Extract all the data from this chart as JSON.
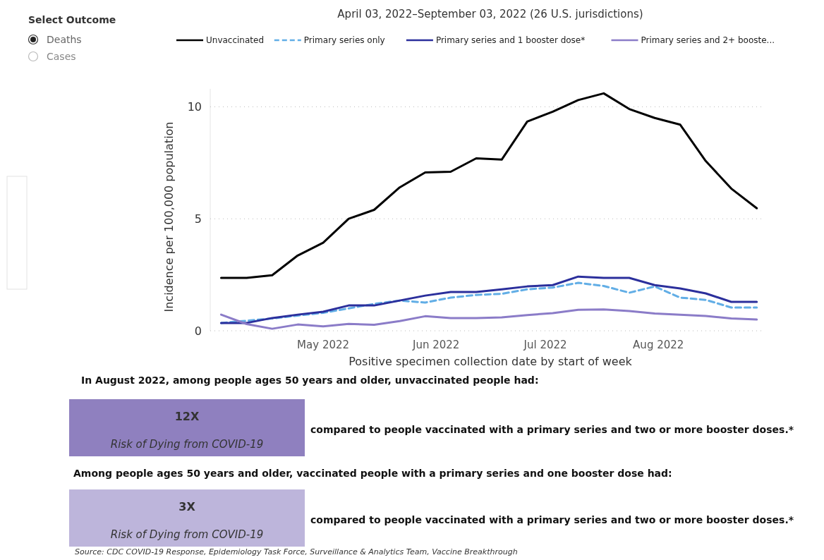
{
  "chart_data": {
    "type": "line",
    "title": "April 03, 2022–September 03, 2022 (26 U.S. jurisdictions)",
    "xlabel": "Positive specimen collection date by start of week",
    "ylabel": "Incidence per 100,000 population",
    "x": [
      "2022-04-03",
      "2022-04-10",
      "2022-04-17",
      "2022-04-24",
      "2022-05-01",
      "2022-05-08",
      "2022-05-15",
      "2022-05-22",
      "2022-05-29",
      "2022-06-05",
      "2022-06-12",
      "2022-06-19",
      "2022-06-26",
      "2022-07-03",
      "2022-07-10",
      "2022-07-17",
      "2022-07-24",
      "2022-07-31",
      "2022-08-07",
      "2022-08-14",
      "2022-08-21",
      "2022-08-28"
    ],
    "xlim": [
      "2022-03-31",
      "2022-08-30"
    ],
    "xticks": [
      {
        "value": "2022-05-01",
        "label": "May 2022"
      },
      {
        "value": "2022-06-01",
        "label": "Jun 2022"
      },
      {
        "value": "2022-07-01",
        "label": "Jul 2022"
      },
      {
        "value": "2022-08-01",
        "label": "Aug 2022"
      }
    ],
    "ylim": [
      0,
      10.8
    ],
    "yticks": [
      0,
      5,
      10
    ],
    "grid": "y",
    "legend": "top",
    "series": [
      {
        "name": "Unvaccinated",
        "color": "#000000",
        "line_style": "solid",
        "values": [
          2.36,
          2.36,
          2.48,
          3.36,
          3.93,
          5.0,
          5.4,
          6.4,
          7.07,
          7.1,
          7.7,
          7.64,
          9.34,
          9.78,
          10.3,
          10.6,
          9.9,
          9.5,
          9.2,
          7.58,
          6.35,
          5.47
        ]
      },
      {
        "name": "Primary series only",
        "color": "#62aee6",
        "line_style": "dashed",
        "values": [
          0.35,
          0.45,
          0.55,
          0.68,
          0.8,
          1.0,
          1.2,
          1.35,
          1.26,
          1.48,
          1.6,
          1.65,
          1.85,
          1.93,
          2.14,
          2.0,
          1.7,
          1.98,
          1.48,
          1.38,
          1.04,
          1.04
        ]
      },
      {
        "name": "Primary series and 1 booster dose*",
        "color": "#2b2f9c",
        "line_style": "solid",
        "values": [
          0.35,
          0.35,
          0.57,
          0.72,
          0.85,
          1.13,
          1.13,
          1.35,
          1.57,
          1.73,
          1.73,
          1.85,
          1.98,
          2.04,
          2.42,
          2.36,
          2.36,
          2.04,
          1.89,
          1.67,
          1.29,
          1.29
        ]
      },
      {
        "name": "Primary series and 2+ booste...",
        "color": "#8b7cc8",
        "line_style": "solid",
        "values": [
          0.72,
          0.3,
          0.09,
          0.28,
          0.2,
          0.31,
          0.27,
          0.43,
          0.65,
          0.57,
          0.57,
          0.6,
          0.7,
          0.79,
          0.94,
          0.95,
          0.88,
          0.77,
          0.72,
          0.66,
          0.55,
          0.5
        ]
      }
    ],
    "annotations": [
      "Select Outcome",
      "Deaths",
      "Cases",
      "In August 2022, among people ages 50 years and older, unvaccinated people had:",
      "12X",
      "Risk of Dying from COVID-19",
      "compared to people vaccinated with a primary series and two or more booster doses.*",
      "Among people ages 50 years and older, vaccinated people with a primary series and one booster dose had:",
      "3X",
      "Risk of Dying from COVID-19",
      "compared to people vaccinated with a primary series and two or more booster doses.*",
      "Source: CDC COVID-19 Response, Epidemiology Task Force, Surveillance & Analytics Team, Vaccine Breakthrough"
    ]
  }
}
